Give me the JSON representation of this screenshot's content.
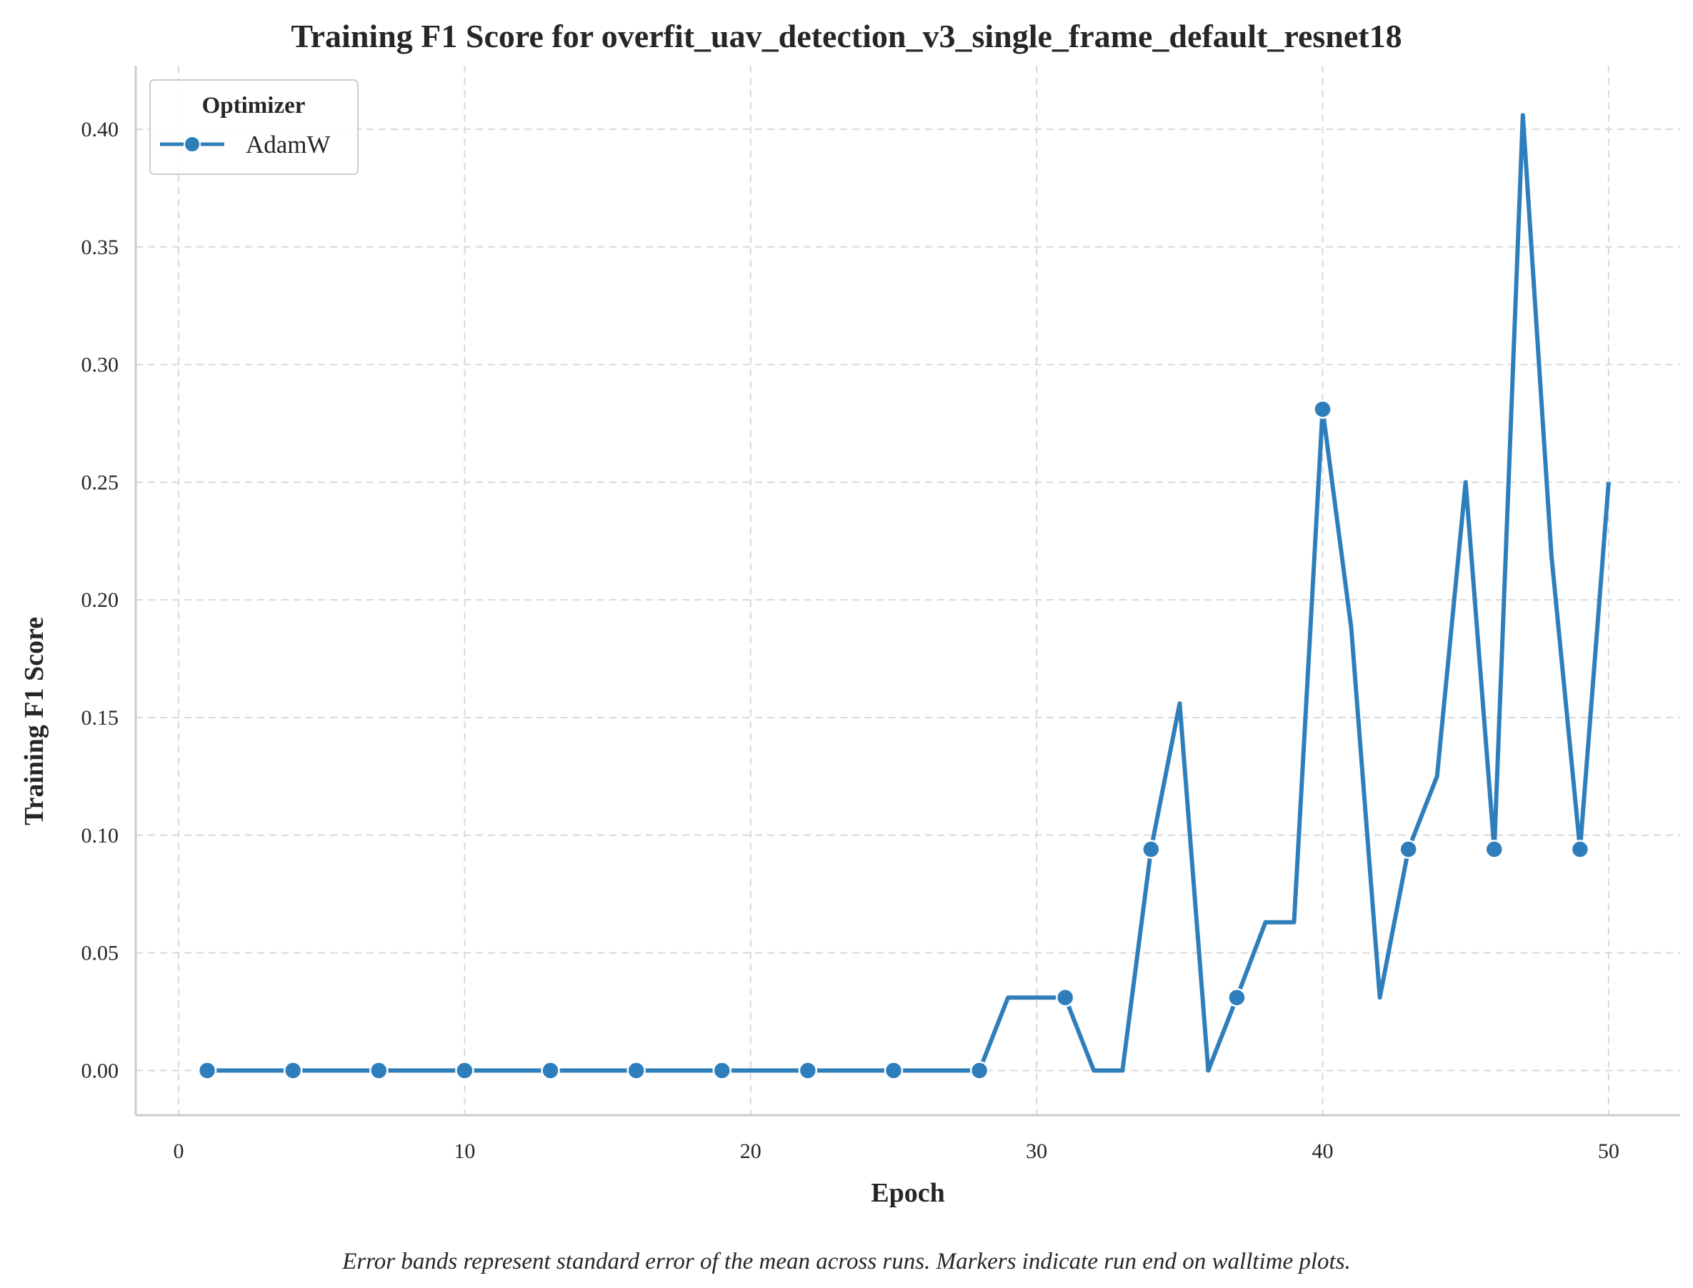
{
  "chart_data": {
    "type": "line",
    "title": "Training F1 Score for overfit_uav_detection_v3_single_frame_default_resnet18",
    "xlabel": "Epoch",
    "ylabel": "Training F1 Score",
    "xlim": [
      -1.5,
      52.5
    ],
    "ylim": [
      -0.019,
      0.427
    ],
    "xticks": [
      0,
      10,
      20,
      30,
      40,
      50
    ],
    "xtick_labels": [
      "0",
      "10",
      "20",
      "30",
      "40",
      "50"
    ],
    "yticks": [
      0.0,
      0.05,
      0.1,
      0.15,
      0.2,
      0.25,
      0.3,
      0.35,
      0.4
    ],
    "ytick_labels": [
      "0.00",
      "0.05",
      "0.10",
      "0.15",
      "0.20",
      "0.25",
      "0.30",
      "0.35",
      "0.40"
    ],
    "grid": true,
    "legend": {
      "title": "Optimizer",
      "placement": "top-left"
    },
    "series": [
      {
        "name": "AdamW",
        "color": "#2f7ebc",
        "x": [
          1,
          2,
          3,
          4,
          5,
          6,
          7,
          8,
          9,
          10,
          11,
          12,
          13,
          14,
          15,
          16,
          17,
          18,
          19,
          20,
          21,
          22,
          23,
          24,
          25,
          26,
          27,
          28,
          29,
          30,
          31,
          32,
          33,
          34,
          35,
          36,
          37,
          38,
          39,
          40,
          41,
          42,
          43,
          44,
          45,
          46,
          47,
          48,
          49,
          50
        ],
        "values": [
          0,
          0,
          0,
          0,
          0,
          0,
          0,
          0,
          0,
          0,
          0,
          0,
          0,
          0,
          0,
          0,
          0,
          0,
          0,
          0,
          0,
          0,
          0,
          0,
          0,
          0,
          0,
          0,
          0.031,
          0.031,
          0.031,
          0,
          0,
          0.094,
          0.156,
          0,
          0.031,
          0.063,
          0.063,
          0.281,
          0.188,
          0.031,
          0.094,
          0.125,
          0.25,
          0.094,
          0.406,
          0.219,
          0.094,
          0.25
        ],
        "marker_x": [
          1,
          4,
          7,
          10,
          13,
          16,
          19,
          22,
          25,
          28,
          31,
          34,
          37,
          40,
          43,
          46,
          49
        ]
      }
    ],
    "caption": "Error bands represent standard error of the mean across runs. Markers indicate run end on walltime plots."
  }
}
